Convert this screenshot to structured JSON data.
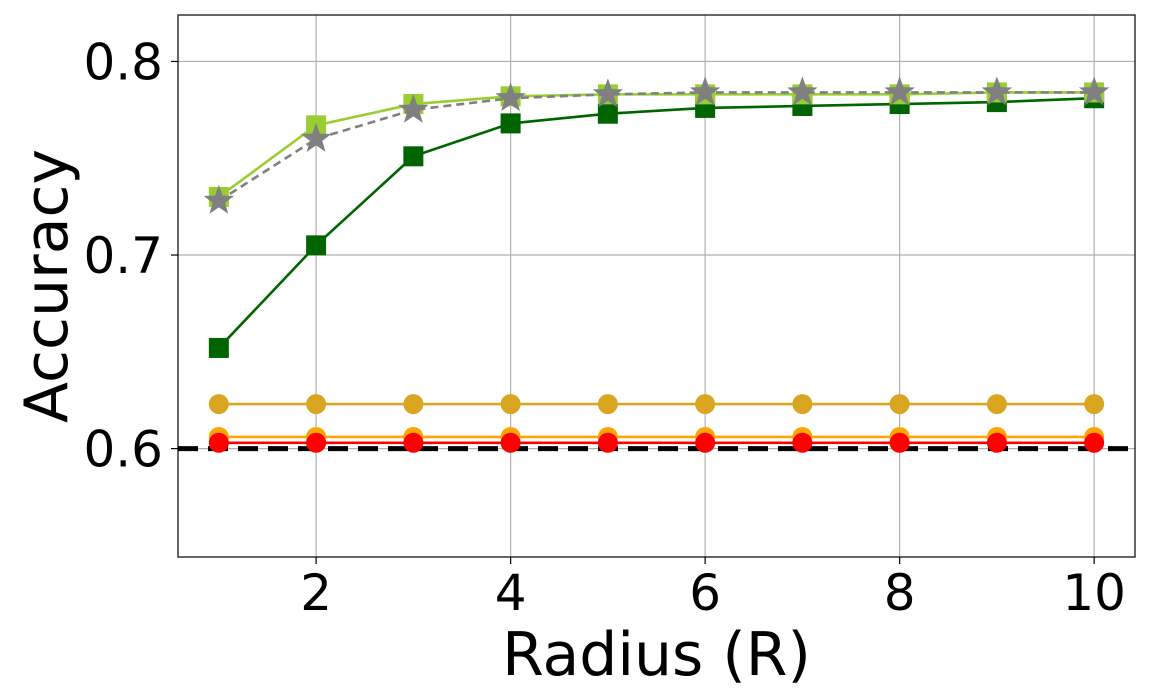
{
  "chart_data": {
    "type": "line",
    "title": "",
    "xlabel": "Radius (R)",
    "ylabel": "Accuracy",
    "xlim": [
      0.58,
      10.42
    ],
    "ylim": [
      0.544,
      0.824
    ],
    "x_ticks": [
      2,
      4,
      6,
      8,
      10
    ],
    "y_ticks": [
      0.6,
      0.7,
      0.8
    ],
    "x_tick_labels": [
      "2",
      "4",
      "6",
      "8",
      "10"
    ],
    "y_tick_labels": [
      "0.6",
      "0.7",
      "0.8"
    ],
    "grid": true,
    "legend": "none",
    "reference_line": {
      "y": 0.6,
      "color": "#000000",
      "style": "dashed"
    },
    "x": [
      1,
      2,
      3,
      4,
      5,
      6,
      7,
      8,
      9,
      10
    ],
    "series": [
      {
        "color": "#FFA500",
        "marker": "circle",
        "line_style": "solid",
        "values": [
          0.606,
          0.606,
          0.606,
          0.606,
          0.606,
          0.606,
          0.606,
          0.606,
          0.606,
          0.606
        ]
      },
      {
        "color": "#DAA520",
        "marker": "circle",
        "line_style": "solid",
        "values": [
          0.623,
          0.623,
          0.623,
          0.623,
          0.623,
          0.623,
          0.623,
          0.623,
          0.623,
          0.623
        ]
      },
      {
        "color": "#FF0000",
        "marker": "circle",
        "line_style": "solid",
        "values": [
          0.603,
          0.603,
          0.603,
          0.603,
          0.603,
          0.603,
          0.603,
          0.603,
          0.603,
          0.603
        ]
      },
      {
        "color": "#006400",
        "marker": "square",
        "line_style": "solid",
        "values": [
          0.652,
          0.705,
          0.751,
          0.768,
          0.773,
          0.776,
          0.777,
          0.778,
          0.779,
          0.781
        ]
      },
      {
        "color": "#9ACD32",
        "marker": "square",
        "line_style": "solid",
        "values": [
          0.73,
          0.767,
          0.778,
          0.782,
          0.783,
          0.783,
          0.783,
          0.783,
          0.784,
          0.784
        ]
      },
      {
        "color": "#808080",
        "marker": "star",
        "line_style": "dashed",
        "values": [
          0.728,
          0.76,
          0.775,
          0.781,
          0.783,
          0.784,
          0.784,
          0.784,
          0.784,
          0.784
        ]
      }
    ]
  }
}
